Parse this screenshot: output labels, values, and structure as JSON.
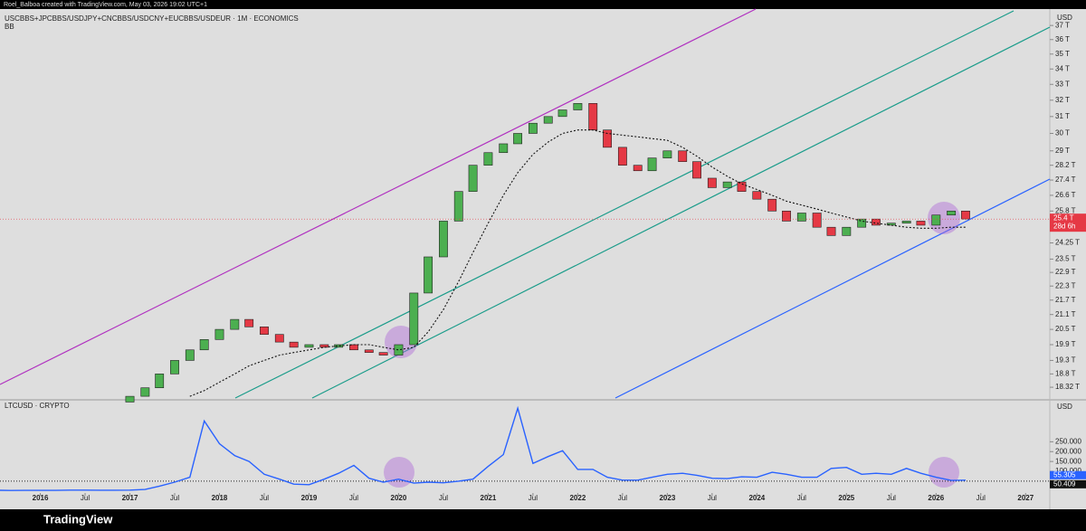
{
  "header": {
    "credit": "Roel_Balboa created with TradingView.com, May 03, 2026 19:02 UTC+1"
  },
  "footer": {
    "brand": "TradingView"
  },
  "chart_data": [
    {
      "type": "candlestick",
      "title": "USCBBS+JPCBBS/USDJPY+CNCBBS/USDCNY+EUCBBS/USDEUR · 1M · ECONOMICS",
      "subtitle": "BB",
      "currency": "USD",
      "log_scale": true,
      "up_color": "#4caf50",
      "down_color": "#e53945",
      "x": [
        2017,
        2017.17,
        2017.33,
        2017.5,
        2017.67,
        2017.83,
        2018,
        2018.17,
        2018.33,
        2018.5,
        2018.67,
        2018.83,
        2019,
        2019.17,
        2019.33,
        2019.5,
        2019.67,
        2019.83,
        2020,
        2020.17,
        2020.33,
        2020.5,
        2020.67,
        2020.83,
        2021,
        2021.17,
        2021.33,
        2021.5,
        2021.67,
        2021.83,
        2022,
        2022.17,
        2022.33,
        2022.5,
        2022.67,
        2022.83,
        2023,
        2023.17,
        2023.33,
        2023.5,
        2023.67,
        2023.83,
        2024,
        2024.17,
        2024.33,
        2024.5,
        2024.67,
        2024.83,
        2025,
        2025.17,
        2025.33,
        2025.5,
        2025.67,
        2025.83,
        2026,
        2026.17,
        2026.33
      ],
      "open": [
        17.8,
        18.0,
        18.3,
        18.8,
        19.3,
        19.7,
        20.1,
        20.5,
        20.9,
        20.6,
        20.3,
        20.0,
        19.8,
        19.9,
        19.8,
        19.9,
        19.7,
        19.6,
        19.5,
        19.9,
        22.0,
        23.6,
        25.3,
        26.8,
        28.2,
        28.9,
        29.4,
        30.0,
        30.6,
        31.0,
        31.4,
        31.8,
        30.2,
        29.2,
        28.2,
        27.9,
        28.6,
        29.0,
        28.4,
        27.5,
        27.0,
        27.3,
        26.8,
        26.4,
        25.8,
        25.3,
        25.7,
        25.0,
        24.6,
        25.0,
        25.4,
        25.1,
        25.2,
        25.3,
        25.1,
        25.6,
        25.8
      ],
      "close": [
        18.0,
        18.3,
        18.8,
        19.3,
        19.7,
        20.1,
        20.5,
        20.9,
        20.6,
        20.3,
        20.0,
        19.8,
        19.9,
        19.8,
        19.9,
        19.7,
        19.6,
        19.5,
        19.9,
        22.0,
        23.6,
        25.3,
        26.8,
        28.2,
        28.9,
        29.4,
        30.0,
        30.6,
        31.0,
        31.4,
        31.8,
        30.2,
        29.2,
        28.2,
        27.9,
        28.6,
        29.0,
        28.4,
        27.5,
        27.0,
        27.3,
        26.8,
        26.4,
        25.8,
        25.3,
        25.7,
        25.0,
        24.6,
        25.0,
        25.4,
        25.1,
        25.2,
        25.3,
        25.1,
        25.6,
        25.8,
        25.4
      ],
      "ma": [
        null,
        null,
        null,
        null,
        18.0,
        18.2,
        18.5,
        18.8,
        19.1,
        19.3,
        19.5,
        19.6,
        19.7,
        19.8,
        19.85,
        19.9,
        19.9,
        19.8,
        19.7,
        19.8,
        20.4,
        21.3,
        22.5,
        23.8,
        25.2,
        26.6,
        27.8,
        28.8,
        29.5,
        30.0,
        30.2,
        30.2,
        30.0,
        29.9,
        29.8,
        29.7,
        29.6,
        29.2,
        28.7,
        28.1,
        27.6,
        27.2,
        26.9,
        26.6,
        26.3,
        26.1,
        25.9,
        25.7,
        25.5,
        25.3,
        25.2,
        25.1,
        25.0,
        24.95,
        24.95,
        25.0,
        25.0
      ],
      "price_label": {
        "value": 25.4,
        "label": "25.4 T"
      },
      "countdown": "28d 6h",
      "xlim": [
        2015.55,
        2027.27
      ],
      "xticks": [
        2016,
        {
          "value": 2016.5,
          "label": "Jul"
        },
        2017,
        {
          "value": 2017.5,
          "label": "Jul"
        },
        2018,
        {
          "value": 2018.5,
          "label": "Jul"
        },
        2019,
        {
          "value": 2019.5,
          "label": "Jul"
        },
        2020,
        {
          "value": 2020.5,
          "label": "Jul"
        },
        2021,
        {
          "value": 2021.5,
          "label": "Jul"
        },
        2022,
        {
          "value": 2022.5,
          "label": "Jul"
        },
        2023,
        {
          "value": 2023.5,
          "label": "Jul"
        },
        2024,
        {
          "value": 2024.5,
          "label": "Jul"
        },
        2025,
        {
          "value": 2025.5,
          "label": "Jul"
        },
        2026,
        {
          "value": 2026.5,
          "label": "Jul"
        },
        2027
      ],
      "ylim": [
        17.94,
        38.2
      ],
      "yticks": [
        {
          "value": 37,
          "label": "37 T"
        },
        {
          "value": 36,
          "label": "36 T"
        },
        {
          "value": 35,
          "label": "35 T"
        },
        {
          "value": 34,
          "label": "34 T"
        },
        {
          "value": 33,
          "label": "33 T"
        },
        {
          "value": 32,
          "label": "32 T"
        },
        {
          "value": 31,
          "label": "31 T"
        },
        {
          "value": 30,
          "label": "30 T"
        },
        {
          "value": 29,
          "label": "29 T"
        },
        {
          "value": 28.2,
          "label": "28.2 T"
        },
        {
          "value": 27.4,
          "label": "27.4 T"
        },
        {
          "value": 26.6,
          "label": "26.6 T"
        },
        {
          "value": 25.8,
          "label": "25.8 T"
        },
        {
          "value": 24.25,
          "label": "24.25 T"
        },
        {
          "value": 23.5,
          "label": "23.5 T"
        },
        {
          "value": 22.9,
          "label": "22.9 T"
        },
        {
          "value": 22.3,
          "label": "22.3 T"
        },
        {
          "value": 21.7,
          "label": "21.7 T"
        },
        {
          "value": 21.1,
          "label": "21.1 T"
        },
        {
          "value": 20.5,
          "label": "20.5 T"
        },
        {
          "value": 19.9,
          "label": "19.9 T"
        },
        {
          "value": 19.3,
          "label": "19.3 T"
        },
        {
          "value": 18.8,
          "label": "18.8 T"
        },
        {
          "value": 18.32,
          "label": "18.32 T"
        }
      ]
    },
    {
      "type": "line",
      "title": "LTCUSD · CRYPTO",
      "currency": "USD",
      "color": "#2962ff",
      "x": [
        2015.5,
        2015.67,
        2015.83,
        2016,
        2016.17,
        2016.33,
        2016.5,
        2016.67,
        2016.83,
        2017,
        2017.17,
        2017.33,
        2017.5,
        2017.67,
        2017.83,
        2018,
        2018.17,
        2018.33,
        2018.5,
        2018.67,
        2018.83,
        2019,
        2019.17,
        2019.33,
        2019.5,
        2019.67,
        2019.83,
        2020,
        2020.17,
        2020.33,
        2020.5,
        2020.67,
        2020.83,
        2021,
        2021.17,
        2021.33,
        2021.5,
        2021.67,
        2021.83,
        2022,
        2022.17,
        2022.33,
        2022.5,
        2022.67,
        2022.83,
        2023,
        2023.17,
        2023.33,
        2023.5,
        2023.67,
        2023.83,
        2024,
        2024.17,
        2024.33,
        2024.5,
        2024.67,
        2024.83,
        2025,
        2025.17,
        2025.33,
        2025.5,
        2025.67,
        2025.83,
        2026,
        2026.17,
        2026.33
      ],
      "values": [
        4,
        3,
        3.5,
        3.5,
        3.2,
        4.5,
        4.5,
        4,
        4,
        4.5,
        8,
        25,
        45,
        70,
        356,
        240,
        180,
        150,
        85,
        60,
        35,
        32,
        60,
        90,
        130,
        65,
        45,
        60,
        40,
        45,
        42,
        50,
        60,
        125,
        185,
        420,
        140,
        175,
        205,
        110,
        110,
        70,
        55,
        55,
        70,
        85,
        90,
        80,
        65,
        63,
        72,
        70,
        95,
        85,
        70,
        70,
        115,
        120,
        85,
        90,
        85,
        115,
        90,
        70,
        54,
        55.3
      ],
      "last_value": 55.305,
      "ref_line": 50.409,
      "ylim": [
        -10,
        449
      ],
      "yticks": [
        {
          "value": 250,
          "label": "250.000"
        },
        {
          "value": 200,
          "label": "200.000"
        },
        {
          "value": 150,
          "label": "150.000"
        },
        {
          "value": 100,
          "label": "100.000"
        }
      ]
    }
  ]
}
